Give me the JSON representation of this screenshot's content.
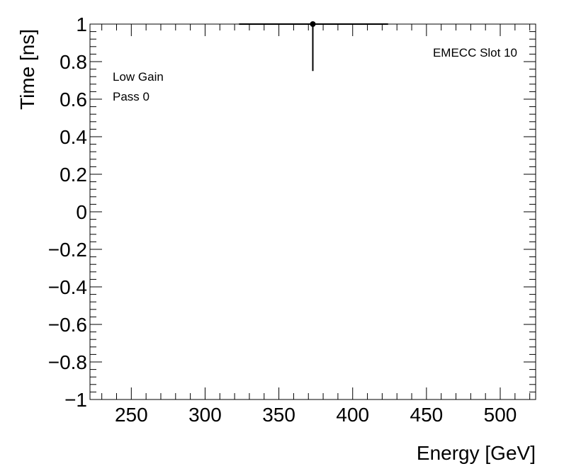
{
  "chart_data": {
    "type": "scatter",
    "xlabel": "Energy [GeV]",
    "ylabel": "Time [ns]",
    "xlim": [
      222,
      524
    ],
    "ylim": [
      -1,
      1
    ],
    "x_ticks": [
      250,
      300,
      350,
      400,
      450,
      500
    ],
    "y_ticks": [
      1,
      0.8,
      0.6,
      0.4,
      0.2,
      0,
      -0.2,
      -0.4,
      -0.6,
      -0.8,
      -1
    ],
    "x_tick_labels": [
      "250",
      "300",
      "350",
      "400",
      "450",
      "500"
    ],
    "y_tick_labels": [
      "1",
      "0.8",
      "0.6",
      "0.4",
      "0.2",
      "0",
      "−0.2",
      "−0.4",
      "−0.6",
      "−0.8",
      "−1"
    ],
    "grid": false,
    "points": [
      {
        "x": 373,
        "y": 1.0,
        "x_low": 323,
        "x_high": 424,
        "y_low": 0.75,
        "y_high": 1.0
      }
    ],
    "annotations": {
      "top_right": "EMECC Slot 10",
      "line1": "Low Gain",
      "line2": "Pass 0"
    },
    "colors": {
      "marker": "#000000",
      "axis": "#000000",
      "background": "#ffffff"
    }
  }
}
